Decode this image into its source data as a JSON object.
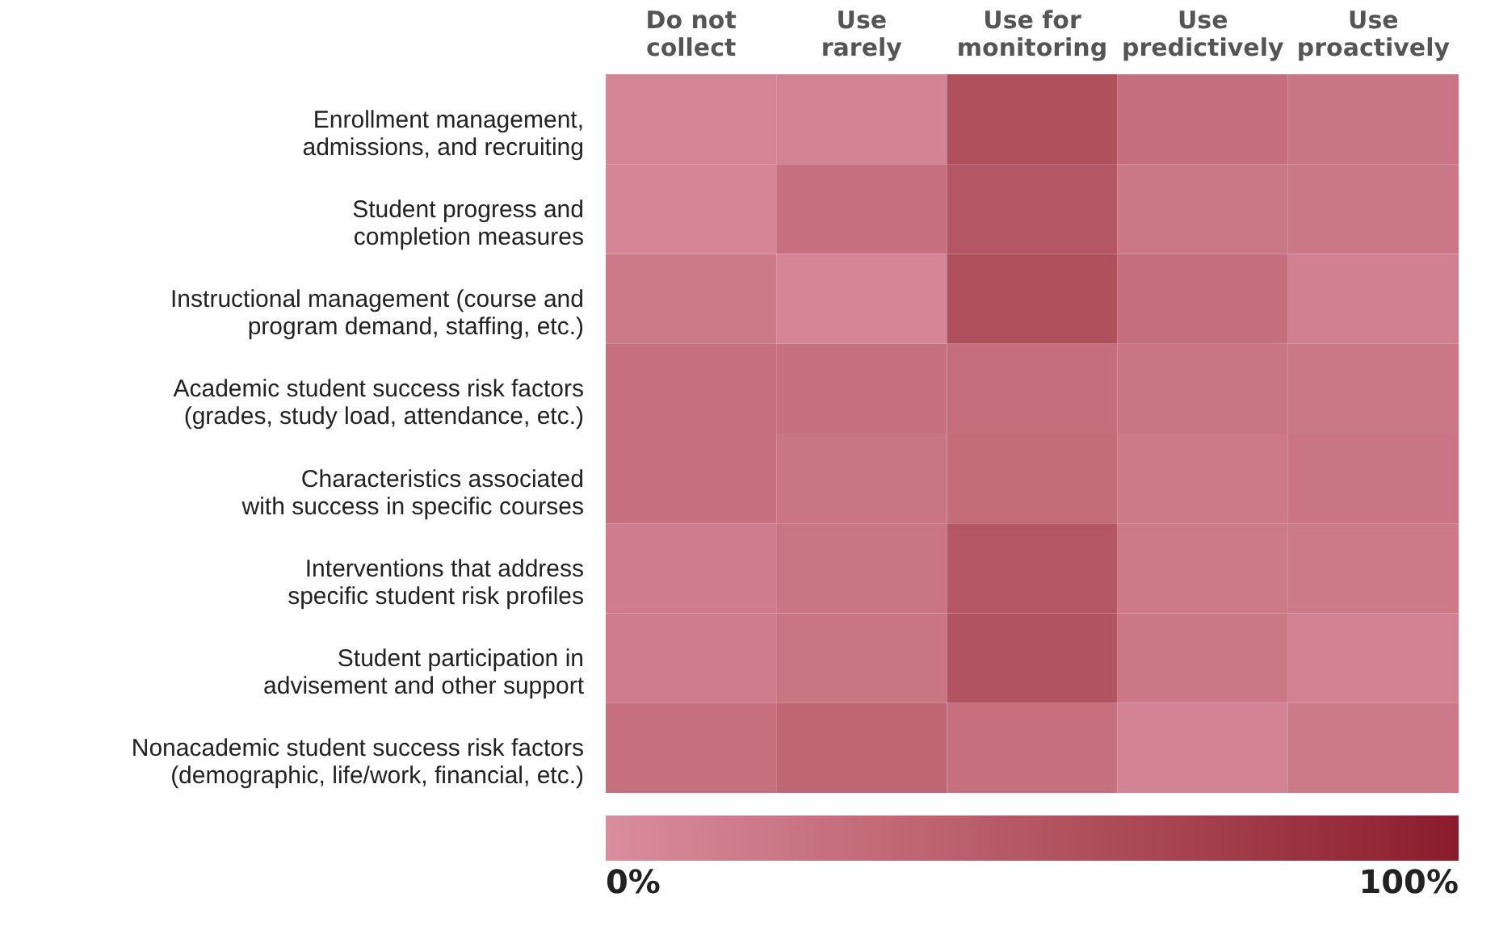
{
  "chart_data": {
    "type": "heatmap",
    "categories": [
      "Do not\ncollect",
      "Use\nrarely",
      "Use for\nmonitoring",
      "Use\npredictively",
      "Use\nproactively"
    ],
    "y_categories": [
      "Enrollment management,\nadmissions, and recruiting",
      "Student progress and\ncompletion measures",
      "Instructional management (course and\nprogram demand, staffing, etc.)",
      "Academic student success risk factors\n(grades, study load, attendance, etc.)",
      "Characteristics associated\nwith success in specific courses",
      "Interventions that address\nspecific student risk profiles",
      "Student participation in\nadvisement and other support",
      "Nonacademic student success risk factors\n(demographic, life/work, financial, etc.)"
    ],
    "cells": [
      [
        6,
        8,
        55,
        27,
        22
      ],
      [
        6,
        25,
        50,
        20,
        20
      ],
      [
        18,
        6,
        55,
        27,
        12
      ],
      [
        25,
        25,
        27,
        22,
        20
      ],
      [
        25,
        22,
        30,
        18,
        22
      ],
      [
        14,
        22,
        50,
        18,
        18
      ],
      [
        14,
        22,
        52,
        20,
        10
      ],
      [
        25,
        35,
        25,
        8,
        18
      ]
    ],
    "colors": [
      "#d98d9d",
      "#8a1b2b"
    ],
    "clim": [
      0,
      100
    ],
    "cticks": [
      {
        "value": 0,
        "label": "0%"
      },
      {
        "value": 100,
        "label": "100%"
      }
    ],
    "grid": false
  }
}
